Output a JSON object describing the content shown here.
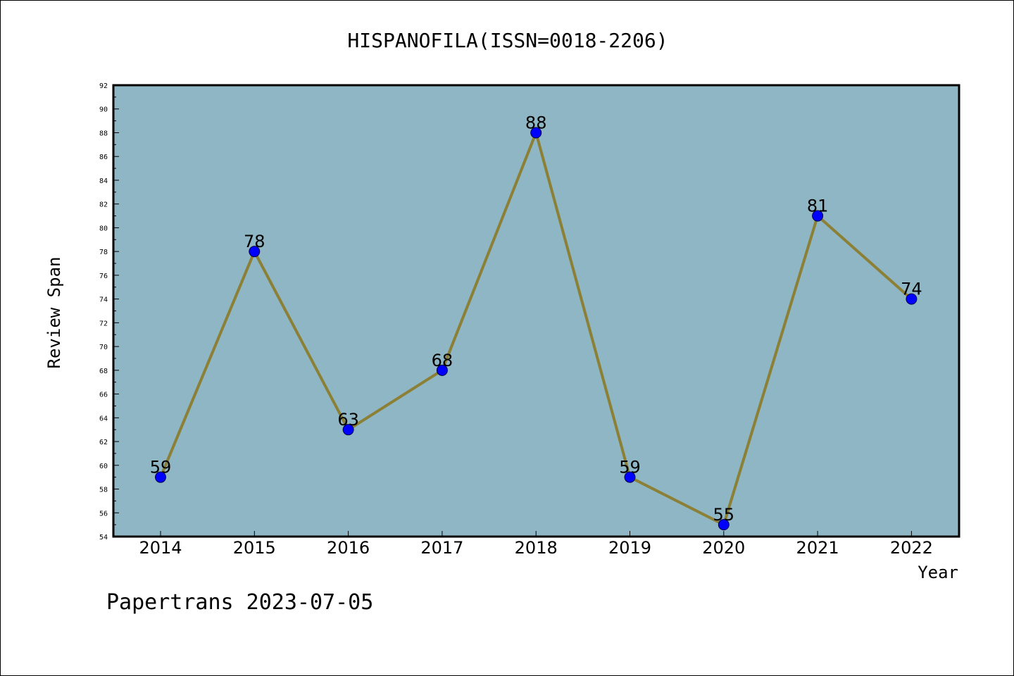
{
  "chart_data": {
    "type": "line",
    "title": "HISPANOFILA(ISSN=0018-2206)",
    "xlabel": "Year",
    "ylabel": "Review Span",
    "categories": [
      "2014",
      "2015",
      "2016",
      "2017",
      "2018",
      "2019",
      "2020",
      "2021",
      "2022"
    ],
    "series": [
      {
        "values": [
          59,
          78,
          63,
          68,
          88,
          59,
          55,
          81,
          74
        ]
      }
    ],
    "data_labels": [
      "59",
      "78",
      "63",
      "68",
      "88",
      "59",
      "55",
      "81",
      "74"
    ],
    "ylim": [
      54,
      92
    ],
    "yticks": [
      "54",
      "56",
      "58",
      "60",
      "62",
      "64",
      "66",
      "68",
      "70",
      "72",
      "74",
      "76",
      "78",
      "80",
      "82",
      "84",
      "86",
      "88",
      "90",
      "92"
    ],
    "grid": false,
    "colors": {
      "plot_background": "#8fb6c4",
      "line": "#8b8035",
      "marker": "#0000ff"
    }
  },
  "footer": {
    "watermark": "Papertrans 2023-07-05"
  }
}
